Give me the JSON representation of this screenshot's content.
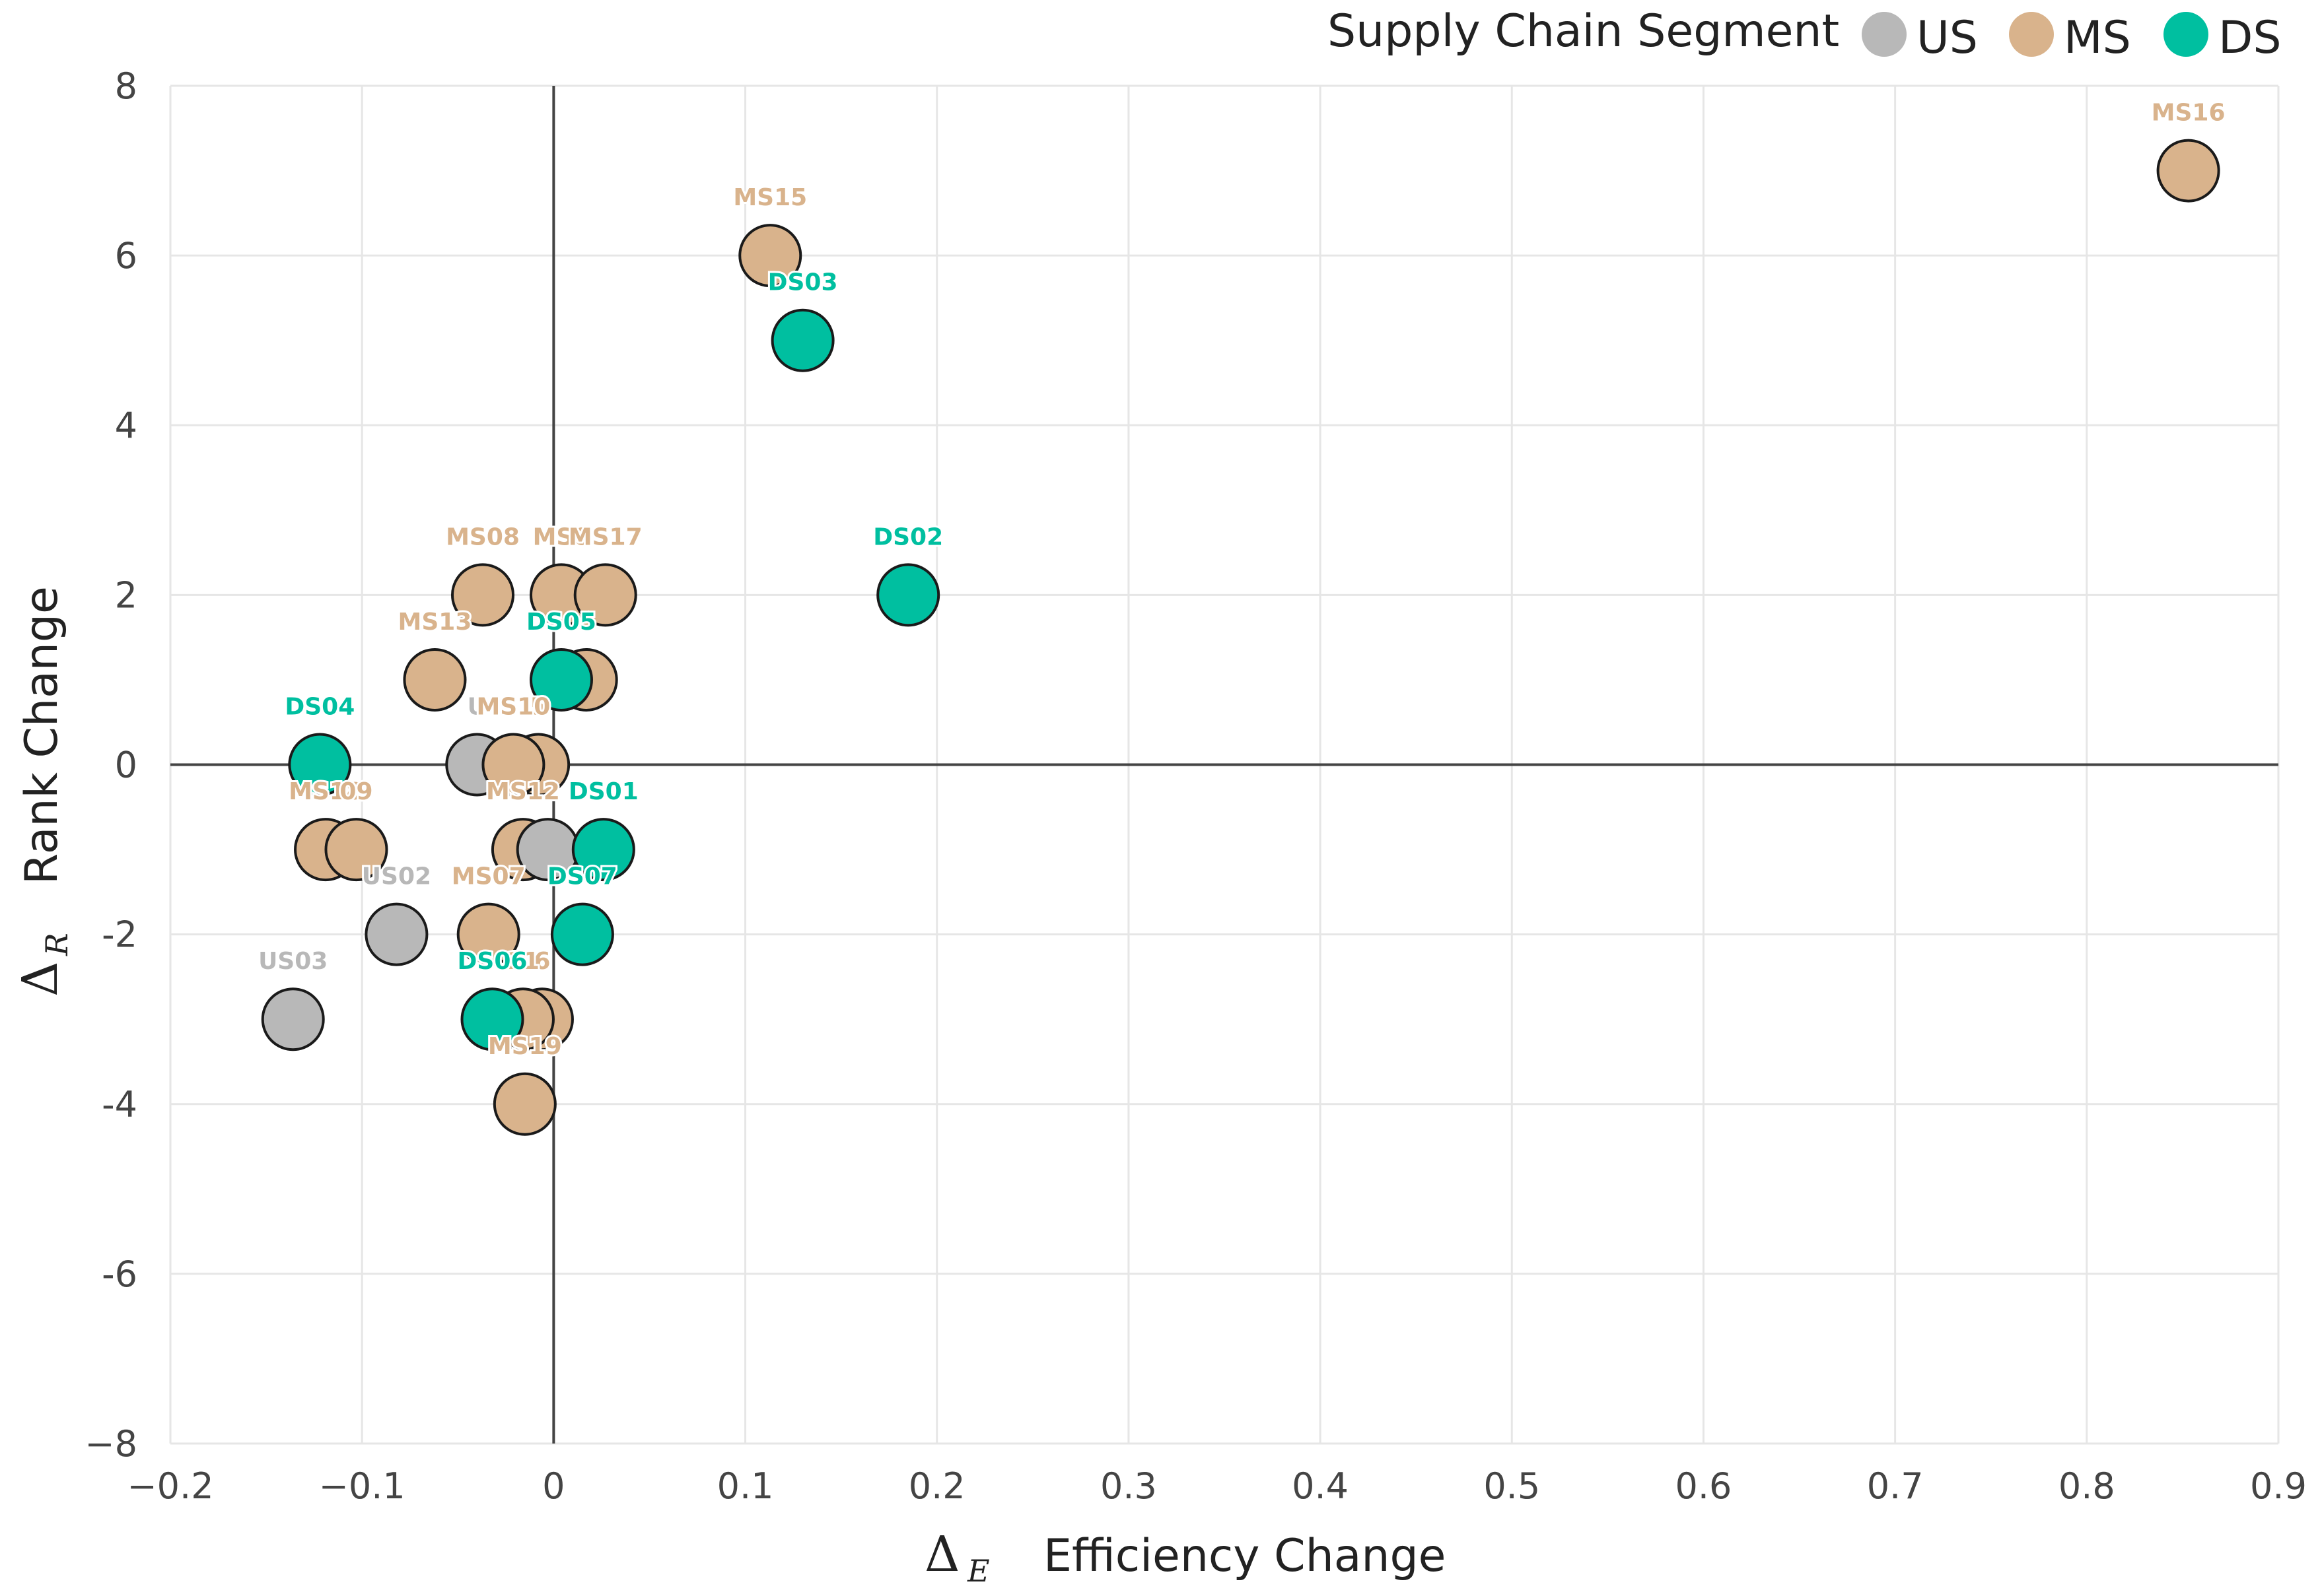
{
  "chart_data": {
    "type": "scatter",
    "title": "",
    "xlabel_symbol": "Δ",
    "xlabel_sub": "E",
    "xlabel": "Efficiency Change",
    "ylabel_symbol": "Δ",
    "ylabel_sub": "R",
    "ylabel": "Rank Change",
    "xlim": [
      -0.2,
      0.9
    ],
    "ylim": [
      -8,
      8
    ],
    "xticks": [
      -0.2,
      -0.1,
      0,
      0.1,
      0.2,
      0.3,
      0.4,
      0.5,
      0.6,
      0.7,
      0.8,
      0.9
    ],
    "xtick_labels": [
      "−0.2",
      "−0.1",
      "0",
      "0.1",
      "0.2",
      "0.3",
      "0.4",
      "0.5",
      "0.6",
      "0.7",
      "0.8",
      "0.9"
    ],
    "yticks": [
      8,
      6,
      4,
      2,
      0,
      -2,
      -4,
      -6,
      -8
    ],
    "ytick_labels": [
      "8",
      "6",
      "4",
      "2",
      "0",
      "-2",
      "-4",
      "-6",
      "−8"
    ],
    "grid": true,
    "reference_lines": {
      "x": 0,
      "y": 0
    },
    "legend": {
      "title": "Supply Chain Segment",
      "placement": "top-right",
      "entries": [
        {
          "key": "US",
          "label": "US"
        },
        {
          "key": "MS",
          "label": "MS"
        },
        {
          "key": "DS",
          "label": "DS"
        }
      ]
    },
    "colors": {
      "US": "#b8b8b8",
      "MS": "#d9b38c",
      "DS": "#00bfa0",
      "point_stroke": "#1a1a1a",
      "grid": "#e6e6e6",
      "axis_line": "#444444"
    },
    "points": [
      {
        "label": "MS16",
        "segment": "MS",
        "x": 0.853,
        "y": 7
      },
      {
        "label": "MS15",
        "segment": "MS",
        "x": 0.113,
        "y": 6
      },
      {
        "label": "DS03",
        "segment": "DS",
        "x": 0.13,
        "y": 5
      },
      {
        "label": "DS02",
        "segment": "DS",
        "x": 0.185,
        "y": 2
      },
      {
        "label": "MS08",
        "segment": "MS",
        "x": -0.037,
        "y": 2
      },
      {
        "label": "MS0",
        "segment": "MS",
        "x": 0.004,
        "y": 2
      },
      {
        "label": "MS17",
        "segment": "MS",
        "x": 0.027,
        "y": 2
      },
      {
        "label": "MS13",
        "segment": "MS",
        "x": -0.062,
        "y": 1
      },
      {
        "label": "4",
        "segment": "MS",
        "x": 0.017,
        "y": 1
      },
      {
        "label": "DS05",
        "segment": "DS",
        "x": 0.004,
        "y": 1
      },
      {
        "label": "DS04",
        "segment": "DS",
        "x": -0.122,
        "y": 0
      },
      {
        "label": "U",
        "segment": "US",
        "x": -0.04,
        "y": 0
      },
      {
        "label": "5",
        "segment": "MS",
        "x": -0.008,
        "y": 0
      },
      {
        "label": "MS10",
        "segment": "MS",
        "x": -0.021,
        "y": 0
      },
      {
        "label": "MS18",
        "segment": "MS",
        "x": -0.119,
        "y": -1
      },
      {
        "label": "09",
        "segment": "MS",
        "x": -0.103,
        "y": -1
      },
      {
        "label": "MS12",
        "segment": "MS",
        "x": -0.016,
        "y": -1
      },
      {
        "label": "",
        "segment": "US",
        "x": -0.003,
        "y": -1
      },
      {
        "label": "DS01",
        "segment": "DS",
        "x": 0.026,
        "y": -1
      },
      {
        "label": "US02",
        "segment": "US",
        "x": -0.082,
        "y": -2
      },
      {
        "label": "MS07",
        "segment": "MS",
        "x": -0.034,
        "y": -2
      },
      {
        "label": "DS07",
        "segment": "DS",
        "x": 0.015,
        "y": -2
      },
      {
        "label": "US03",
        "segment": "US",
        "x": -0.136,
        "y": -3
      },
      {
        "label": "6",
        "segment": "MS",
        "x": -0.006,
        "y": -3
      },
      {
        "label": "11",
        "segment": "MS",
        "x": -0.016,
        "y": -3
      },
      {
        "label": "DS06",
        "segment": "DS",
        "x": -0.032,
        "y": -3
      },
      {
        "label": "MS19",
        "segment": "MS",
        "x": -0.015,
        "y": -4
      }
    ]
  }
}
